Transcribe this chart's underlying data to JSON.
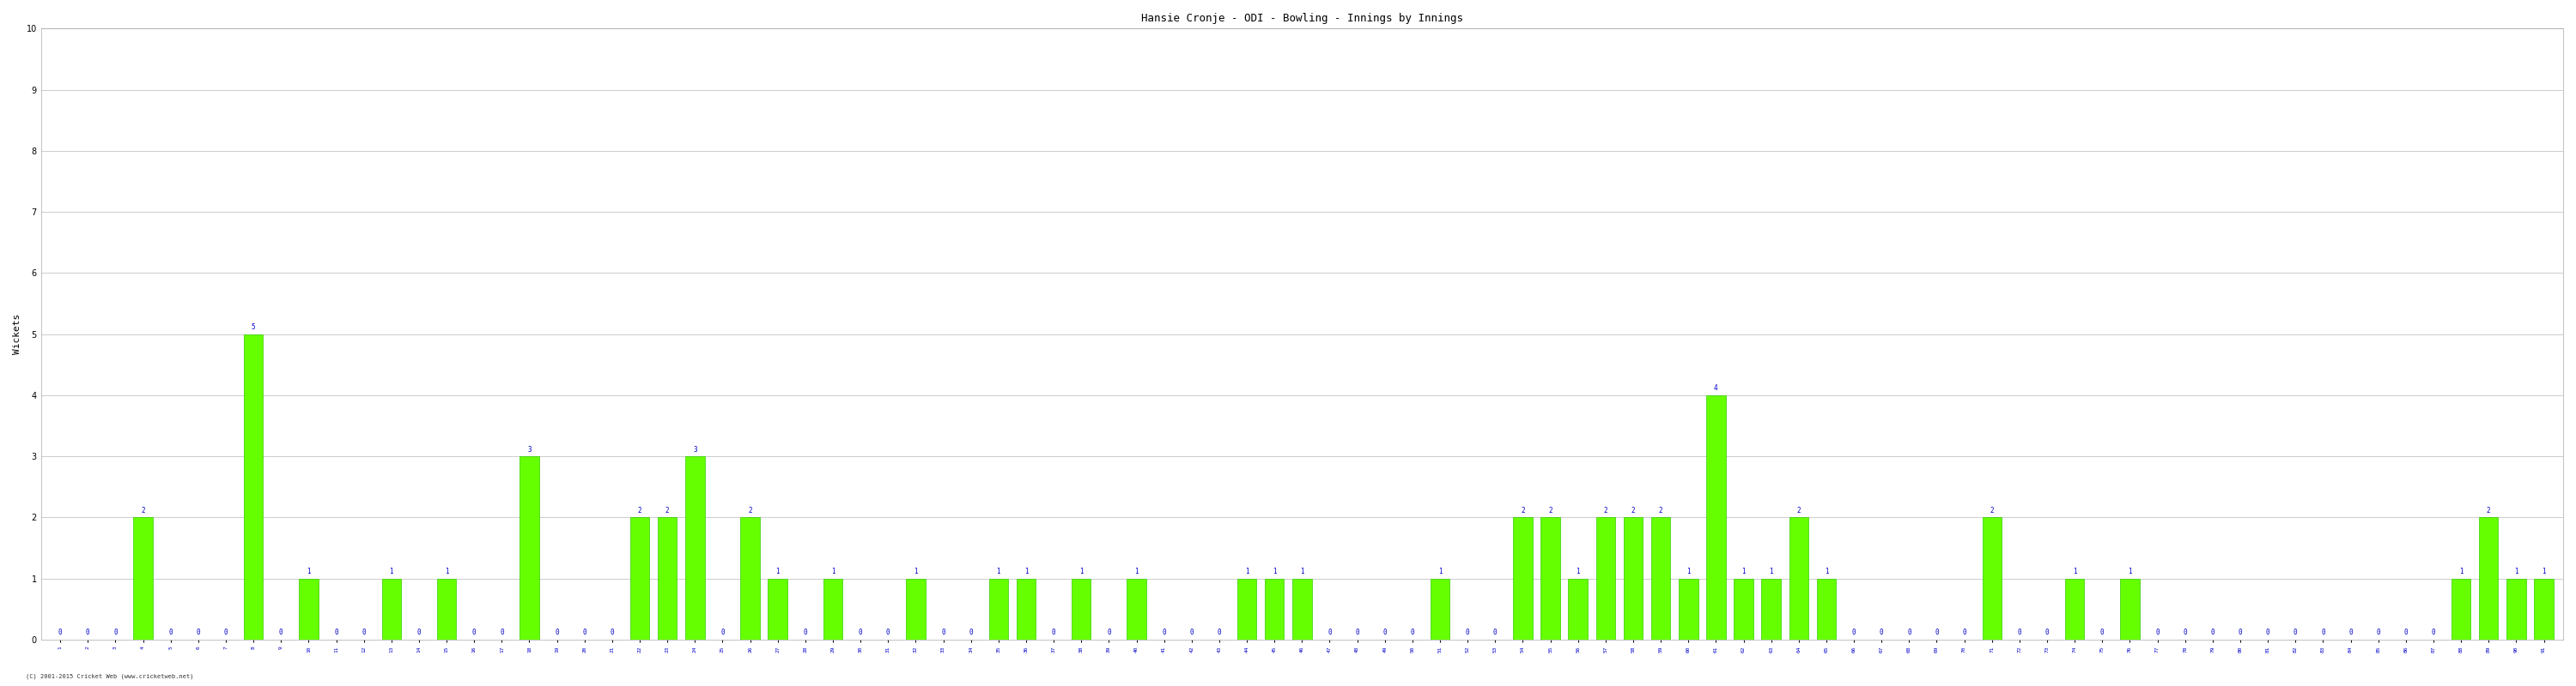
{
  "title": "Hansie Cronje - ODI - Bowling - Innings by Innings",
  "ylabel": "Wickets",
  "bar_color": "#66ff00",
  "bar_edge_color": "#33cc00",
  "label_color": "#0000cc",
  "background_color": "#ffffff",
  "grid_color": "#cccccc",
  "ylim": [
    0,
    10
  ],
  "yticks": [
    0,
    1,
    2,
    3,
    4,
    5,
    6,
    7,
    8,
    9,
    10
  ],
  "wickets": [
    0,
    0,
    0,
    2,
    0,
    0,
    0,
    5,
    0,
    1,
    0,
    0,
    1,
    0,
    1,
    0,
    0,
    3,
    0,
    0,
    0,
    2,
    2,
    3,
    0,
    2,
    1,
    0,
    1,
    0,
    0,
    1,
    0,
    0,
    1,
    1,
    0,
    1,
    0,
    1,
    0,
    0,
    0,
    1,
    1,
    1,
    0,
    0,
    0,
    0,
    1,
    0,
    0,
    2,
    2,
    1,
    2,
    2,
    2,
    1,
    4,
    1,
    1,
    2,
    1,
    0,
    0,
    0,
    0,
    0,
    2,
    0,
    0,
    1,
    0,
    1,
    0,
    0,
    0,
    0,
    0,
    0,
    0,
    0,
    0,
    0,
    0,
    1,
    2,
    1,
    1
  ],
  "footer": "(C) 2001-2015 Cricket Web (www.cricketweb.net)"
}
